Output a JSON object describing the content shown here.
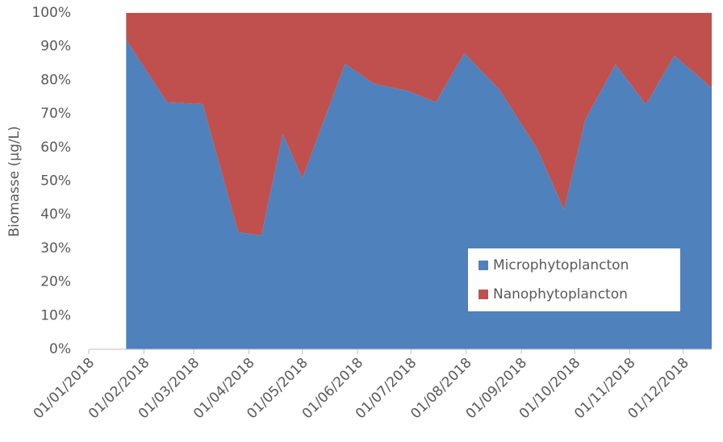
{
  "chart_data": {
    "type": "stacked-area-percent",
    "y_label": "Biomasse (µg/L)",
    "x": [
      "2018-01-22",
      "2018-02-14",
      "2018-03-06",
      "2018-03-26",
      "2018-04-08",
      "2018-04-20",
      "2018-05-01",
      "2018-05-25",
      "2018-06-10",
      "2018-06-30",
      "2018-07-15",
      "2018-07-31",
      "2018-08-20",
      "2018-09-10",
      "2018-09-25",
      "2018-10-07",
      "2018-10-24",
      "2018-11-10",
      "2018-11-26",
      "2018-12-17"
    ],
    "series": [
      {
        "name": "Microphytoplancton",
        "color": "#4f81bd",
        "values": [
          92,
          73.4,
          72.9,
          34.8,
          33.8,
          64,
          50.8,
          84.9,
          79,
          76.7,
          73.4,
          88,
          77,
          59.5,
          41.5,
          68.3,
          84.7,
          72.7,
          87.3,
          77.7
        ]
      },
      {
        "name": "Nanophytoplancton",
        "color": "#c0504d",
        "values": [
          8,
          26.6,
          27.1,
          65.2,
          66.2,
          36,
          49.2,
          15.1,
          21,
          23.3,
          26.6,
          12,
          23,
          40.5,
          58.5,
          31.7,
          15.3,
          27.3,
          12.7,
          22.3
        ]
      }
    ],
    "xlim": [
      "2018-01-01",
      "2018-12-17"
    ],
    "xticks": [
      {
        "value": "2018-01-01",
        "label": "01/01/2018"
      },
      {
        "value": "2018-02-01",
        "label": "01/02/2018"
      },
      {
        "value": "2018-03-01",
        "label": "01/03/2018"
      },
      {
        "value": "2018-04-01",
        "label": "01/04/2018"
      },
      {
        "value": "2018-05-01",
        "label": "01/05/2018"
      },
      {
        "value": "2018-06-01",
        "label": "01/06/2018"
      },
      {
        "value": "2018-07-01",
        "label": "01/07/2018"
      },
      {
        "value": "2018-08-01",
        "label": "01/08/2018"
      },
      {
        "value": "2018-09-01",
        "label": "01/09/2018"
      },
      {
        "value": "2018-10-01",
        "label": "01/10/2018"
      },
      {
        "value": "2018-11-01",
        "label": "01/11/2018"
      },
      {
        "value": "2018-12-01",
        "label": "01/12/2018"
      }
    ],
    "ylim": [
      0,
      100
    ],
    "yticks": [
      {
        "value": 0,
        "label": "0%"
      },
      {
        "value": 10,
        "label": "10%"
      },
      {
        "value": 20,
        "label": "20%"
      },
      {
        "value": 30,
        "label": "30%"
      },
      {
        "value": 40,
        "label": "40%"
      },
      {
        "value": 50,
        "label": "50%"
      },
      {
        "value": 60,
        "label": "60%"
      },
      {
        "value": 70,
        "label": "70%"
      },
      {
        "value": 80,
        "label": "80%"
      },
      {
        "value": 90,
        "label": "90%"
      },
      {
        "value": 100,
        "label": "100%"
      }
    ],
    "legend": "lower-right"
  }
}
